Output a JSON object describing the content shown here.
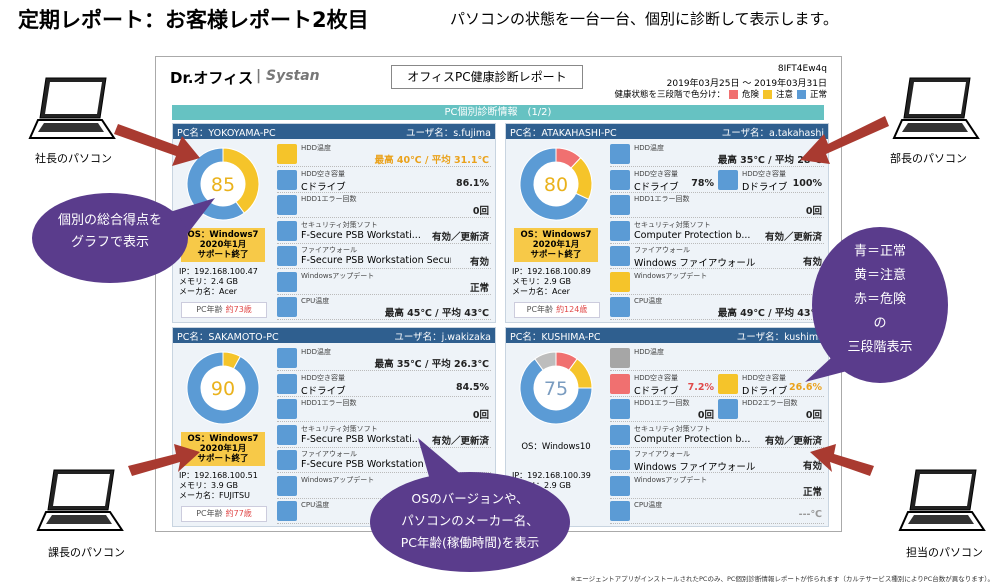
{
  "header": {
    "title": "定期レポート：お客様レポート2枚目",
    "subtitle": "パソコンの状態を一台一台、個別に診断して表示します。"
  },
  "report": {
    "logo": "Dr.オフィス",
    "brand": "| Systan",
    "title": "オフィスPC健康診断レポート",
    "id": "8IFT4Ew4q",
    "period": "2019年03月25日 ～ 2019年03月31日",
    "legend_label": "健康状態を三段階で色分け：",
    "legend": [
      {
        "label": "危険",
        "color": "#f07070"
      },
      {
        "label": "注意",
        "color": "#f5c42a"
      },
      {
        "label": "正常",
        "color": "#5b9bd5"
      }
    ],
    "section": "PC個別診断情報　(1/2)",
    "pcs": [
      {
        "name": "PC名：YOKOYAMA-PC",
        "user": "ユーザ名：s.fujima",
        "score": 85,
        "score_color": "#eab21c",
        "donut": {
          "values": [
            40,
            60
          ],
          "colors": [
            "#f5c42a",
            "#5b9bd5"
          ]
        },
        "os": {
          "lines": [
            "OS：Windows7",
            "2020年1月",
            "サポート終了"
          ],
          "highlight": true
        },
        "info": [
          "IP：192.168.100.47",
          "メモリ：2.4 GB",
          "メーカ名：Acer"
        ],
        "age_label": "PC年齢",
        "age": "約73歳",
        "rows": [
          {
            "cells": [
              {
                "color": "#f5c42a",
                "label": "HDD温度",
                "value": "最高 40℃ / 平均 31.1℃",
                "value_color": "#eaa21c"
              }
            ]
          },
          {
            "cells": [
              {
                "color": "#5b9bd5",
                "label": "HDD空き容量",
                "detail": "Cドライブ",
                "value": "86.1%"
              }
            ]
          },
          {
            "cells": [
              {
                "color": "#5b9bd5",
                "label": "HDD1エラー回数",
                "value": "0回"
              }
            ]
          },
          {
            "cells": [
              {
                "color": "#5b9bd5",
                "label": "セキュリティ対策ソフト",
                "detail": "F-Secure PSB Workstati...",
                "value": "有効／更新済"
              }
            ]
          },
          {
            "cells": [
              {
                "color": "#5b9bd5",
                "label": "ファイアウォール",
                "detail": "F-Secure PSB Workstation Securi...",
                "value": "有効"
              }
            ]
          },
          {
            "cells": [
              {
                "color": "#5b9bd5",
                "label": "Windowsアップデート",
                "value": "正常"
              }
            ]
          },
          {
            "cells": [
              {
                "color": "#5b9bd5",
                "label": "CPU温度",
                "value": "最高 45℃ / 平均 43℃"
              }
            ]
          }
        ]
      },
      {
        "name": "PC名：ATAKAHASHI-PC",
        "user": "ユーザ名：a.takahashi",
        "score": 80,
        "score_color": "#eab21c",
        "donut": {
          "values": [
            12,
            20,
            68
          ],
          "colors": [
            "#f07070",
            "#f5c42a",
            "#5b9bd5"
          ]
        },
        "os": {
          "lines": [
            "OS：Windows7",
            "2020年1月",
            "サポート終了"
          ],
          "highlight": true
        },
        "info": [
          "IP：192.168.100.89",
          "メモリ：2.9 GB",
          "メーカ名：Acer"
        ],
        "age_label": "PC年齢",
        "age": "約124歳",
        "rows": [
          {
            "cells": [
              {
                "color": "#5b9bd5",
                "label": "HDD温度",
                "value": "最高 35℃ / 平均 28℃"
              }
            ]
          },
          {
            "cells": [
              {
                "color": "#5b9bd5",
                "label": "HDD空き容量",
                "detail": "Cドライブ",
                "value": "78%"
              },
              {
                "color": "#5b9bd5",
                "label": "HDD空き容量",
                "detail": "Dドライブ",
                "value": "100%"
              }
            ]
          },
          {
            "cells": [
              {
                "color": "#5b9bd5",
                "label": "HDD1エラー回数",
                "value": "0回"
              }
            ]
          },
          {
            "cells": [
              {
                "color": "#5b9bd5",
                "label": "セキュリティ対策ソフト",
                "detail": "Computer Protection b...",
                "value": "有効／更新済"
              }
            ]
          },
          {
            "cells": [
              {
                "color": "#5b9bd5",
                "label": "ファイアウォール",
                "detail": "Windows ファイアウォール",
                "value": "有効"
              }
            ]
          },
          {
            "cells": [
              {
                "color": "#f5c42a",
                "label": "Windowsアップデート"
              }
            ]
          },
          {
            "cells": [
              {
                "color": "#5b9bd5",
                "label": "CPU温度",
                "value": "最高 49℃ / 平均 43℃"
              }
            ]
          }
        ]
      },
      {
        "name": "PC名：SAKAMOTO-PC",
        "user": "ユーザ名：j.wakizaka",
        "score": 90,
        "score_color": "#eab21c",
        "donut": {
          "values": [
            8,
            92
          ],
          "colors": [
            "#f5c42a",
            "#5b9bd5"
          ]
        },
        "os": {
          "lines": [
            "OS：Windows7",
            "2020年1月",
            "サポート終了"
          ],
          "highlight": true
        },
        "info": [
          "IP：192.168.100.51",
          "メモリ：3.9 GB",
          "メーカ名：FUJITSU"
        ],
        "age_label": "PC年齢",
        "age": "約77歳",
        "rows": [
          {
            "cells": [
              {
                "color": "#5b9bd5",
                "label": "HDD温度",
                "value": "最高 35℃ / 平均 26.3℃"
              }
            ]
          },
          {
            "cells": [
              {
                "color": "#5b9bd5",
                "label": "HDD空き容量",
                "detail": "Cドライブ",
                "value": "84.5%"
              }
            ]
          },
          {
            "cells": [
              {
                "color": "#5b9bd5",
                "label": "HDD1エラー回数",
                "value": "0回"
              }
            ]
          },
          {
            "cells": [
              {
                "color": "#5b9bd5",
                "label": "セキュリティ対策ソフト",
                "detail": "F-Secure PSB Workstati...",
                "value": "有効／更新済"
              }
            ]
          },
          {
            "cells": [
              {
                "color": "#5b9bd5",
                "label": "ファイアウォール",
                "detail": "F-Secure PSB Workstation"
              }
            ]
          },
          {
            "cells": [
              {
                "color": "#5b9bd5",
                "label": "Windowsアップデート"
              }
            ]
          },
          {
            "cells": [
              {
                "color": "#5b9bd5",
                "label": "CPU温度"
              }
            ]
          }
        ]
      },
      {
        "name": "PC名：KUSHIMA-PC",
        "user": "ユーザ名：kushima",
        "score": 75,
        "score_color": "#7a9cc0",
        "donut": {
          "values": [
            10,
            15,
            65,
            10
          ],
          "colors": [
            "#f07070",
            "#f5c42a",
            "#5b9bd5",
            "#bdbdbd"
          ]
        },
        "os": {
          "lines": [
            "OS：Windows10"
          ],
          "highlight": false
        },
        "info": [
          "IP：192.168.100.39",
          "メモリ：2.9 GB"
        ],
        "rows": [
          {
            "cells": [
              {
                "color": "#a6a6a6",
                "label": "HDD温度"
              }
            ]
          },
          {
            "cells": [
              {
                "color": "#f07070",
                "label": "HDD空き容量",
                "detail": "Cドライブ",
                "value": "7.2%",
                "value_color": "#e04848"
              },
              {
                "color": "#f5c42a",
                "label": "HDD空き容量",
                "detail": "Dドライブ",
                "value": "26.6%",
                "value_color": "#eaa21c"
              }
            ]
          },
          {
            "cells": [
              {
                "color": "#5b9bd5",
                "label": "HDD1エラー回数",
                "value": "0回"
              },
              {
                "color": "#5b9bd5",
                "label": "HDD2エラー回数",
                "value": "0回"
              }
            ]
          },
          {
            "cells": [
              {
                "color": "#5b9bd5",
                "label": "セキュリティ対策ソフト",
                "detail": "Computer Protection b...",
                "value": "有効／更新済"
              }
            ]
          },
          {
            "cells": [
              {
                "color": "#5b9bd5",
                "label": "ファイアウォール",
                "detail": "Windows ファイアウォール",
                "value": "有効"
              }
            ]
          },
          {
            "cells": [
              {
                "color": "#5b9bd5",
                "label": "Windowsアップデート",
                "value": "正常"
              }
            ]
          },
          {
            "cells": [
              {
                "color": "#5b9bd5",
                "label": "CPU温度",
                "value": "---℃",
                "value_color": "#999999"
              }
            ]
          }
        ]
      }
    ]
  },
  "laptops": [
    "社長のパソコン",
    "部長のパソコン",
    "課長のパソコン",
    "担当のパソコン"
  ],
  "bubbles": [
    {
      "lines": [
        "個別の総合得点を",
        "グラフで表示"
      ]
    },
    {
      "lines": [
        "青＝正常",
        "黄＝注意",
        "赤＝危険",
        "の",
        "三段階表示"
      ]
    },
    {
      "lines": [
        "OSのバージョンや、",
        "パソコンのメーカー名、",
        "PC年齢(稼働時間)を表示"
      ]
    }
  ],
  "footnote": "※エージェントアプリがインストールされたPCのみ、PC個別診断情報レポートが作られます（カルテサービス種別によりPC台数が異なります）。"
}
